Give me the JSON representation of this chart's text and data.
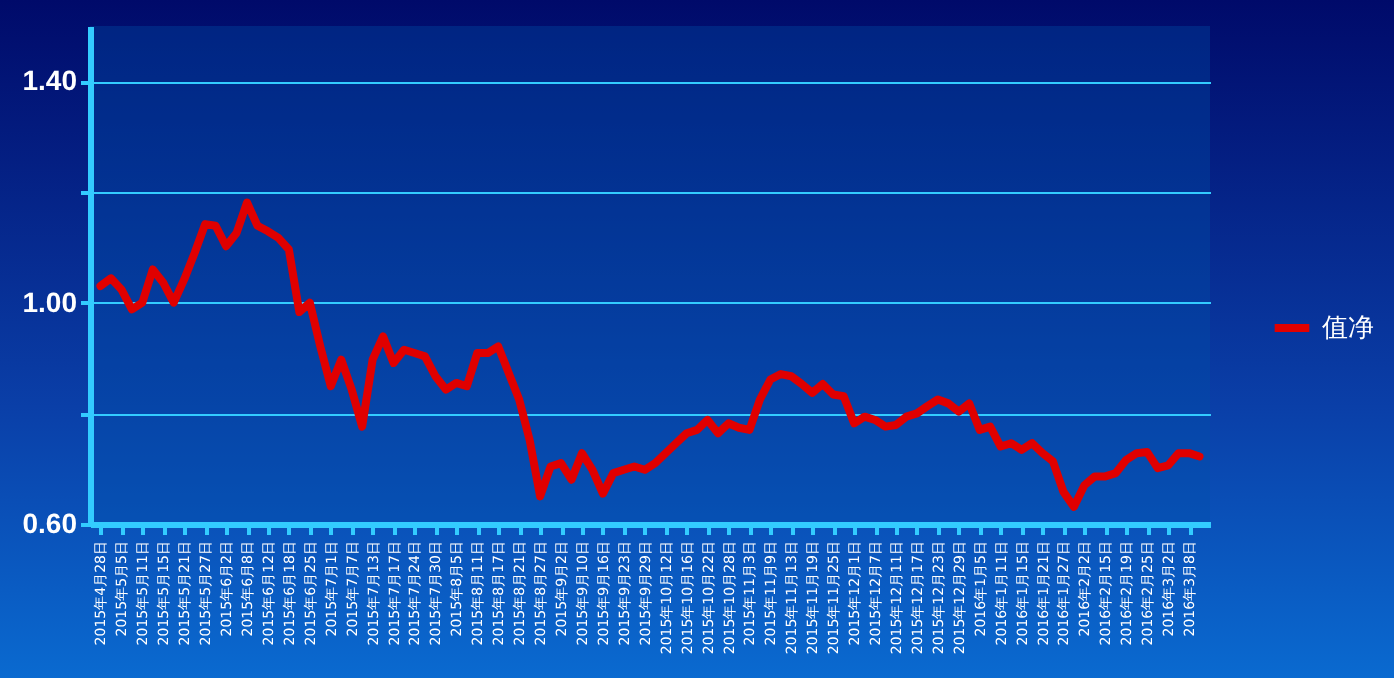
{
  "chart_data": {
    "type": "line",
    "categories": [
      "2015年4月28日",
      null,
      "2015年5月5日",
      null,
      "2015年5月11日",
      null,
      "2015年5月15日",
      null,
      "2015年5月21日",
      null,
      "2015年5月27日",
      null,
      "2015年6月2日",
      null,
      "2015年6月8日",
      null,
      "2015年6月12日",
      null,
      "2015年6月18日",
      null,
      "2015年6月25日",
      null,
      "2015年7月1日",
      null,
      "2015年7月7日",
      null,
      "2015年7月13日",
      null,
      "2015年7月17日",
      null,
      "2015年7月24日",
      null,
      "2015年7月30日",
      null,
      "2015年8月5日",
      null,
      "2015年8月11日",
      null,
      "2015年8月17日",
      null,
      "2015年8月21日",
      null,
      "2015年8月27日",
      null,
      "2015年9月2日",
      null,
      "2015年9月10日",
      null,
      "2015年9月16日",
      null,
      "2015年9月23日",
      null,
      "2015年9月29日",
      null,
      "2015年10月12日",
      null,
      "2015年10月16日",
      null,
      "2015年10月22日",
      null,
      "2015年10月28日",
      null,
      "2015年11月3日",
      null,
      "2015年11月9日",
      null,
      "2015年11月13日",
      null,
      "2015年11月19日",
      null,
      "2015年11月25日",
      null,
      "2015年12月1日",
      null,
      "2015年12月7日",
      null,
      "2015年12月11日",
      null,
      "2015年12月17日",
      null,
      "2015年12月23日",
      null,
      "2015年12月29日",
      null,
      "2016年1月5日",
      null,
      "2016年1月11日",
      null,
      "2016年1月15日",
      null,
      "2016年1月21日",
      null,
      "2016年1月27日",
      null,
      "2016年2月2日",
      null,
      "2016年2月15日",
      null,
      "2016年2月19日",
      null,
      "2016年2月25日",
      null,
      "2016年3月2日",
      null,
      "2016年3月8日",
      null
    ],
    "series": [
      {
        "name": "值净",
        "color": "#e00000",
        "values": [
          1.03,
          1.044,
          1.024,
          0.988,
          1.0,
          1.06,
          1.036,
          1.0,
          1.042,
          1.09,
          1.142,
          1.139,
          1.102,
          1.126,
          1.181,
          1.139,
          1.129,
          1.117,
          1.096,
          0.983,
          1.0,
          0.921,
          0.849,
          0.897,
          0.843,
          0.776,
          0.897,
          0.939,
          0.891,
          0.915,
          0.909,
          0.903,
          0.867,
          0.843,
          0.855,
          0.849,
          0.909,
          0.909,
          0.921,
          0.873,
          0.825,
          0.752,
          0.65,
          0.704,
          0.71,
          0.68,
          0.728,
          0.698,
          0.655,
          0.692,
          0.698,
          0.704,
          0.698,
          0.71,
          0.728,
          0.746,
          0.764,
          0.77,
          0.788,
          0.764,
          0.782,
          0.774,
          0.77,
          0.825,
          0.861,
          0.871,
          0.867,
          0.853,
          0.837,
          0.853,
          0.834,
          0.831,
          0.782,
          0.794,
          0.788,
          0.776,
          0.779,
          0.794,
          0.8,
          0.813,
          0.825,
          0.818,
          0.803,
          0.818,
          0.77,
          0.776,
          0.74,
          0.746,
          0.734,
          0.746,
          0.728,
          0.713,
          0.658,
          0.631,
          0.67,
          0.686,
          0.686,
          0.692,
          0.716,
          0.728,
          0.73,
          0.701,
          0.706,
          0.728,
          0.728,
          0.722
        ]
      }
    ],
    "ylim": [
      0.6,
      1.5
    ],
    "yticks": [
      {
        "value": 0.6,
        "label": "0.60"
      },
      {
        "value": 0.8,
        "label": null
      },
      {
        "value": 1.0,
        "label": "1.00"
      },
      {
        "value": 1.2,
        "label": null
      },
      {
        "value": 1.4,
        "label": "1.40"
      }
    ],
    "grid": "y",
    "legend": "right",
    "line_style": "solid"
  }
}
